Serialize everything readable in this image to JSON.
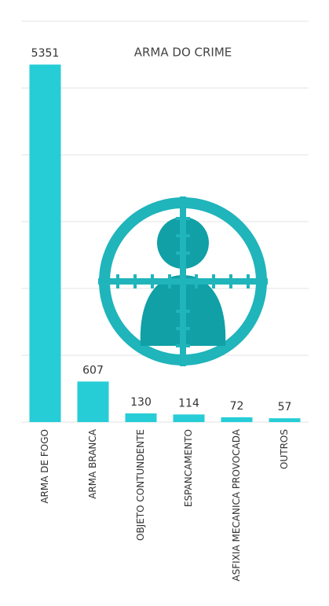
{
  "chart_data": {
    "type": "bar",
    "title": "ARMA DO CRIME",
    "categories": [
      "ARMA DE FOGO",
      "ARMA BRANCA",
      "OBJETO CONTUNDENTE",
      "ESPANCAMENTO",
      "ASFIXIA MECANICA PROVOCADA",
      "OUTROS"
    ],
    "values": [
      5351,
      607,
      130,
      114,
      72,
      57
    ],
    "color": "#26cdd6",
    "ylim": [
      0,
      6000
    ],
    "yticks": [
      0,
      1000,
      2000,
      3000,
      4000,
      5000,
      6000
    ],
    "grid": true
  }
}
